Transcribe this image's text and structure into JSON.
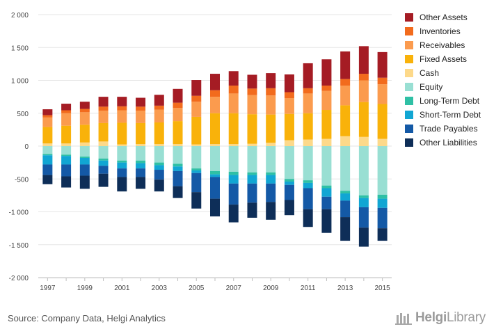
{
  "chart_data": {
    "type": "stacked-bar",
    "categories": [
      "1997",
      "1998",
      "1999",
      "2000",
      "2001",
      "2002",
      "2003",
      "2004",
      "2005",
      "2006",
      "2007",
      "2008",
      "2009",
      "2010",
      "2011",
      "2012",
      "2013",
      "2014",
      "2015"
    ],
    "x_tick_labels": [
      "1997",
      "1999",
      "2001",
      "2003",
      "2005",
      "2007",
      "2009",
      "2011",
      "2013",
      "2015"
    ],
    "y_tick_labels": [
      "2 000",
      "1 500",
      "1 000",
      "500",
      "0",
      "-500",
      "-1 000",
      "-1 500",
      "-2 000"
    ],
    "y_ticks": [
      2000,
      1500,
      1000,
      500,
      0,
      -500,
      -1000,
      -1500,
      -2000
    ],
    "ylim": [
      -2000,
      2000
    ],
    "title": "",
    "xlabel": "",
    "ylabel": "",
    "legend_position": "right",
    "asset_series": [
      {
        "name": "Cash",
        "color": "#fdd98a",
        "values": [
          40,
          40,
          55,
          70,
          25,
          30,
          30,
          30,
          25,
          30,
          30,
          35,
          50,
          90,
          100,
          110,
          150,
          140,
          110
        ]
      },
      {
        "name": "Fixed Assets",
        "color": "#f9b20a",
        "values": [
          250,
          270,
          270,
          280,
          330,
          320,
          330,
          350,
          420,
          470,
          470,
          450,
          430,
          400,
          400,
          440,
          470,
          530,
          530
        ]
      },
      {
        "name": "Receivables",
        "color": "#fb9b4e",
        "values": [
          145,
          190,
          190,
          190,
          190,
          190,
          195,
          200,
          230,
          250,
          300,
          290,
          290,
          240,
          300,
          290,
          300,
          330,
          300
        ]
      },
      {
        "name": "Inventories",
        "color": "#f26b1d",
        "values": [
          35,
          45,
          50,
          60,
          60,
          60,
          60,
          80,
          90,
          100,
          120,
          100,
          110,
          90,
          80,
          80,
          100,
          100,
          100
        ]
      },
      {
        "name": "Other Assets",
        "color": "#a51c24",
        "values": [
          90,
          100,
          110,
          150,
          145,
          135,
          165,
          210,
          240,
          250,
          220,
          210,
          230,
          270,
          380,
          400,
          420,
          420,
          390
        ]
      }
    ],
    "liability_series": [
      {
        "name": "Equity",
        "color": "#99dfd3",
        "values": [
          -120,
          -130,
          -160,
          -190,
          -220,
          -220,
          -250,
          -270,
          -340,
          -380,
          -390,
          -400,
          -400,
          -500,
          -520,
          -600,
          -680,
          -750,
          -740
        ]
      },
      {
        "name": "Long-Term Debt",
        "color": "#2fc0a5",
        "values": [
          -20,
          -20,
          -20,
          -30,
          -30,
          -40,
          -40,
          -40,
          -30,
          -50,
          -50,
          -40,
          -40,
          -40,
          -40,
          -40,
          -40,
          -40,
          -60
        ]
      },
      {
        "name": "Short-Term Debt",
        "color": "#11a6d3",
        "values": [
          -140,
          -130,
          -100,
          -80,
          -90,
          -80,
          -70,
          -70,
          -40,
          -40,
          -130,
          -130,
          -130,
          -50,
          -80,
          -130,
          -110,
          -140,
          -140
        ]
      },
      {
        "name": "Trade Payables",
        "color": "#1459a6",
        "values": [
          -160,
          -180,
          -170,
          -120,
          -130,
          -130,
          -150,
          -230,
          -290,
          -330,
          -320,
          -290,
          -280,
          -230,
          -320,
          -190,
          -250,
          -310,
          -310
        ]
      },
      {
        "name": "Other Liabilities",
        "color": "#0e2e58",
        "values": [
          -140,
          -170,
          -200,
          -200,
          -220,
          -180,
          -180,
          -180,
          -250,
          -270,
          -270,
          -230,
          -270,
          -230,
          -270,
          -360,
          -360,
          -290,
          -190
        ]
      }
    ]
  },
  "legend": [
    {
      "label": "Other Assets",
      "color": "#a51c24"
    },
    {
      "label": "Inventories",
      "color": "#f26b1d"
    },
    {
      "label": "Receivables",
      "color": "#fb9b4e"
    },
    {
      "label": "Fixed Assets",
      "color": "#f9b20a"
    },
    {
      "label": "Cash",
      "color": "#fdd98a"
    },
    {
      "label": "Equity",
      "color": "#99dfd3"
    },
    {
      "label": "Long-Term Debt",
      "color": "#2fc0a5"
    },
    {
      "label": "Short-Term Debt",
      "color": "#11a6d3"
    },
    {
      "label": "Trade Payables",
      "color": "#1459a6"
    },
    {
      "label": "Other Liabilities",
      "color": "#0e2e58"
    }
  ],
  "footer": {
    "source": "Source: Company Data, Helgi Analytics",
    "brand_bold": "Helgi",
    "brand_light": "Library",
    "brand_icon": "building-icon"
  }
}
